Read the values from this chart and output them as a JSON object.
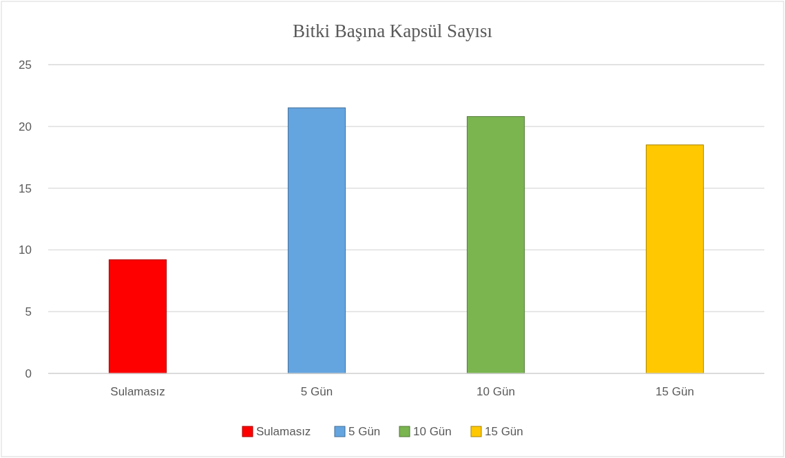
{
  "chart_data": {
    "type": "bar",
    "title": "Bitki Başına Kapsül Sayısı",
    "categories": [
      "Sulamasız",
      "5 Gün",
      "10 Gün",
      "15 Gün"
    ],
    "series": [
      {
        "name": "Sulamasız",
        "color": "#ff0000",
        "values": [
          9.2,
          null,
          null,
          null
        ]
      },
      {
        "name": "5 Gün",
        "color": "#64a5e0",
        "values": [
          null,
          21.5,
          null,
          null
        ]
      },
      {
        "name": "10 Gün",
        "color": "#7ab550",
        "values": [
          null,
          null,
          20.8,
          null
        ]
      },
      {
        "name": "15 Gün",
        "color": "#ffc800",
        "values": [
          null,
          null,
          null,
          18.5
        ]
      }
    ],
    "ylim": [
      0,
      25
    ],
    "yticks": [
      0,
      5,
      10,
      15,
      20,
      25
    ],
    "grid": "y",
    "legend": "bottom"
  }
}
